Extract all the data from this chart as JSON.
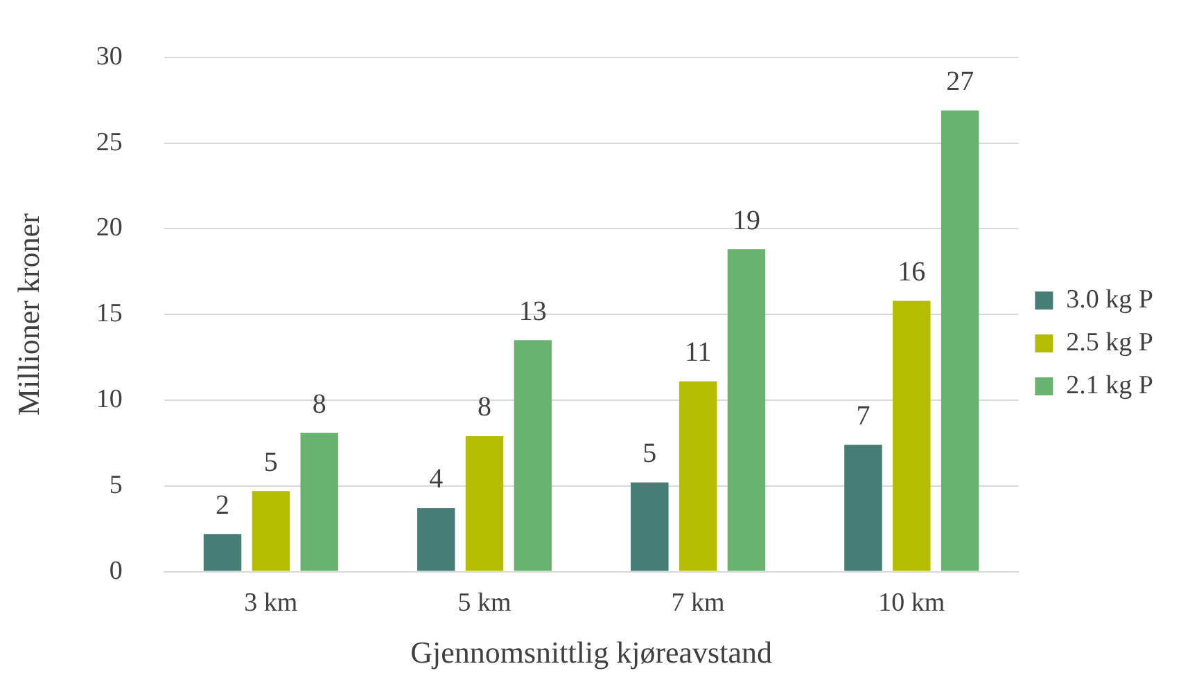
{
  "chart_data": {
    "type": "bar",
    "xlabel": "Gjennomsnittlig kjøreavstand",
    "ylabel": "Millioner kroner",
    "categories": [
      "3 km",
      "5 km",
      "7 km",
      "10 km"
    ],
    "series": [
      {
        "name": "3.0 kg P",
        "color": "#467d74",
        "values": [
          2.2,
          3.7,
          5.2,
          7.4
        ],
        "value_labels": [
          "2",
          "4",
          "5",
          "7"
        ]
      },
      {
        "name": "2.5 kg P",
        "color": "#b5bd00",
        "values": [
          4.7,
          7.9,
          11.1,
          15.8
        ],
        "value_labels": [
          "5",
          "8",
          "11",
          "16"
        ]
      },
      {
        "name": "2.1 kg P",
        "color": "#68b36f",
        "values": [
          8.1,
          13.5,
          18.8,
          26.9
        ],
        "value_labels": [
          "8",
          "13",
          "19",
          "27"
        ]
      }
    ],
    "ylim": [
      0,
      30
    ],
    "yticks": [
      0,
      5,
      10,
      15,
      20,
      25,
      30
    ],
    "grid": "y",
    "legend": "right"
  }
}
